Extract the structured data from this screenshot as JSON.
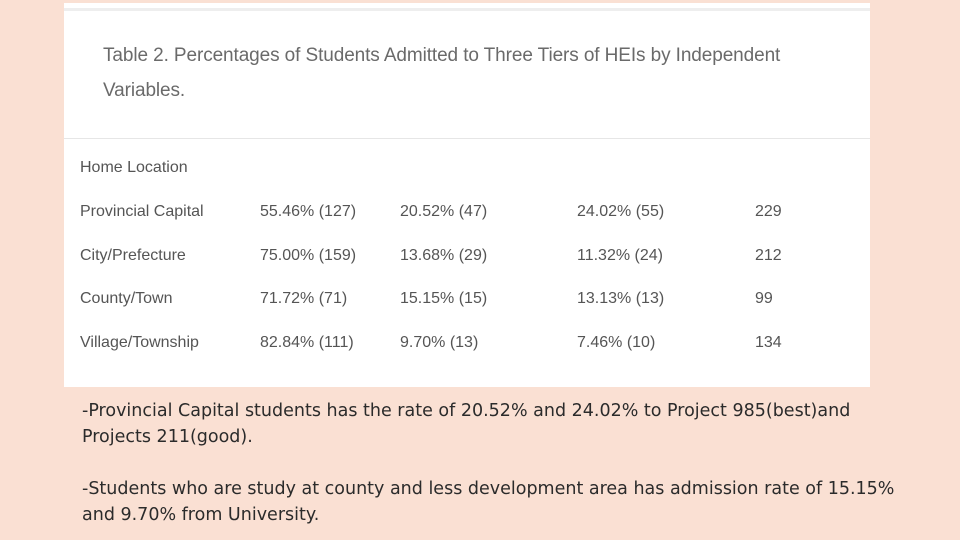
{
  "table": {
    "caption": "Table 2. Percentages of Students Admitted to Three Tiers of HEIs by Independent Variables.",
    "group_label": "Home Location",
    "rows": [
      {
        "label": "Provincial Capital",
        "c1": "55.46% (127)",
        "c2": "20.52% (47)",
        "c3": "24.02% (55)",
        "total": "229"
      },
      {
        "label": "City/Prefecture",
        "c1": "75.00% (159)",
        "c2": "13.68% (29)",
        "c3": "11.32% (24)",
        "total": "212"
      },
      {
        "label": "County/Town",
        "c1": "71.72% (71)",
        "c2": "15.15% (15)",
        "c3": "13.13% (13)",
        "total": "99"
      },
      {
        "label": "Village/Township",
        "c1": "82.84% (111)",
        "c2": "9.70% (13)",
        "c3": "7.46% (10)",
        "total": "134"
      }
    ]
  },
  "notes": [
    "-Provincial Capital students has the rate of  20.52% and 24.02% to Project 985(best)and Projects 211(good).",
    "-Students who are study at county and less development area has admission rate of 15.15% and 9.70% from University."
  ],
  "colors": {
    "slide_background": "#fae0d3",
    "panel_background": "#ffffff",
    "table_text": "#555555",
    "caption_text": "#6a6a6a",
    "note_text": "#2b2b2b"
  }
}
